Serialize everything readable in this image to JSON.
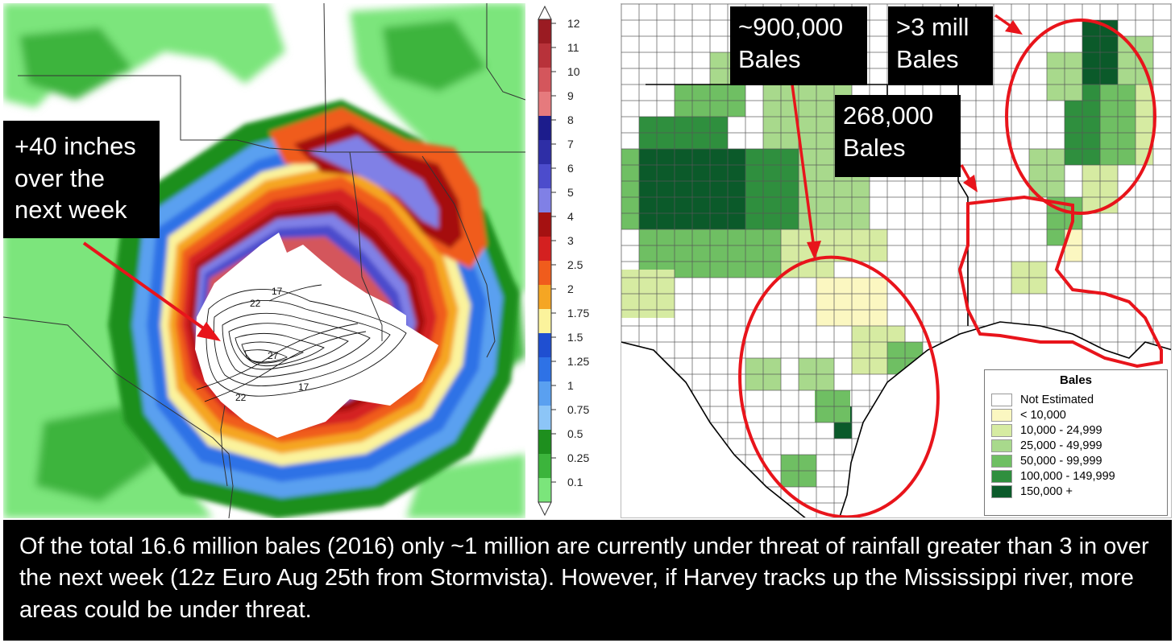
{
  "rain_map": {
    "callout": "+40 inches over the next week",
    "contour_labels": [
      "17",
      "22",
      "22",
      "27",
      "22",
      "17"
    ]
  },
  "colorbar": {
    "ticks": [
      "12",
      "11",
      "10",
      "9",
      "8",
      "7",
      "6",
      "5",
      "4",
      "3",
      "2.5",
      "2",
      "1.75",
      "1.5",
      "1.25",
      "1",
      "0.75",
      "0.5",
      "0.25",
      "0.1"
    ],
    "colors": [
      "#9a1b22",
      "#b8323a",
      "#d4565c",
      "#e67a7d",
      "#1c1c8c",
      "#2e2ea6",
      "#4c4ccc",
      "#8080e6",
      "#a51111",
      "#d42020",
      "#f05c1c",
      "#f5a623",
      "#fbf39c",
      "#1f4fd1",
      "#2e72e6",
      "#5aa0f0",
      "#8cc5f7",
      "#1e8f1e",
      "#3cb43c",
      "#7be57b"
    ]
  },
  "cotton_map": {
    "callouts": {
      "c900k": "~900,000 Bales",
      "c3m": ">3 mill Bales",
      "c268k": "268,000 Bales"
    },
    "legend": {
      "title": "Bales",
      "items": [
        {
          "label": "Not Estimated",
          "color": "#ffffff"
        },
        {
          "label": "< 10,000",
          "color": "#fbf7c1"
        },
        {
          "label": "10,000 -  24,999",
          "color": "#d6eba2"
        },
        {
          "label": "25,000 -  49,999",
          "color": "#a8d98c"
        },
        {
          "label": "50,000 -  99,999",
          "color": "#6fbf63"
        },
        {
          "label": "100,000 - 149,999",
          "color": "#2f8f3e"
        },
        {
          "label": "150,000 +",
          "color": "#0b5a2a"
        }
      ]
    }
  },
  "caption": "Of the total 16.6 million bales (2016) only ~1 million are currently under threat of rainfall greater than 3 in over the next week (12z Euro Aug 25th from Stormvista).  However, if Harvey tracks up the Mississippi river, more areas could be under threat."
}
